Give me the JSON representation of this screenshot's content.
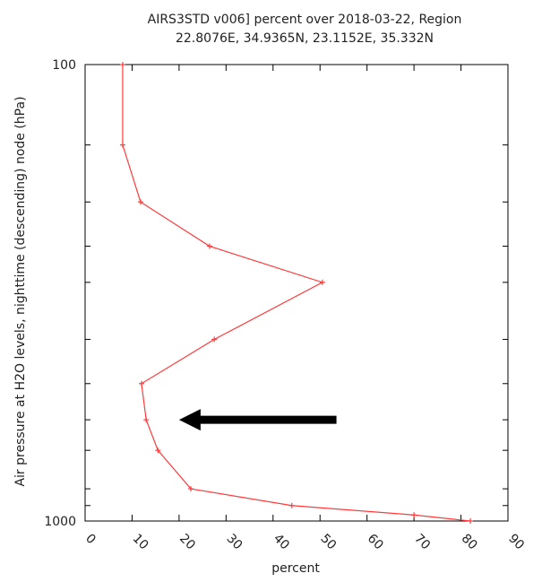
{
  "chart_data": {
    "type": "line",
    "title_lines": [
      "AIRS3STD v006] percent over 2018-03-22, Region",
      "22.8076E, 34.9365N, 23.1152E, 35.332N"
    ],
    "xlabel": "percent",
    "ylabel": "Air pressure at H2O levels, nighttime (descending) node (hPa)",
    "xlim": [
      0,
      90
    ],
    "ylim": [
      1000,
      100
    ],
    "y_scale": "log",
    "x_ticks": [
      0,
      10,
      20,
      30,
      40,
      50,
      60,
      70,
      80,
      90
    ],
    "x_tick_labels": [
      "0",
      "10",
      "20",
      "30",
      "40",
      "50",
      "60",
      "70",
      "80",
      "90"
    ],
    "y_ticks": [
      100,
      1000
    ],
    "y_tick_labels": [
      "100",
      "1000"
    ],
    "y_minor_ticks": [
      150,
      200,
      250,
      300,
      400,
      500,
      600,
      700,
      850,
      925
    ],
    "grid": false,
    "series": [
      {
        "color": "#ff3b3b",
        "marker": "plus",
        "points": [
          {
            "x": 8.0,
            "y": 100
          },
          {
            "x": 8.0,
            "y": 150
          },
          {
            "x": 11.8,
            "y": 200
          },
          {
            "x": 26.5,
            "y": 250
          },
          {
            "x": 50.5,
            "y": 300
          },
          {
            "x": 27.5,
            "y": 400
          },
          {
            "x": 12.0,
            "y": 500
          },
          {
            "x": 13.0,
            "y": 600
          },
          {
            "x": 15.5,
            "y": 700
          },
          {
            "x": 22.5,
            "y": 850
          },
          {
            "x": 44.0,
            "y": 925
          },
          {
            "x": 70.0,
            "y": 970
          },
          {
            "x": 82.0,
            "y": 1000
          }
        ]
      }
    ],
    "annotation": {
      "type": "arrow",
      "color": "#000000",
      "from": {
        "x": 53.5,
        "y": 600
      },
      "to": {
        "x": 20.0,
        "y": 600
      }
    }
  }
}
